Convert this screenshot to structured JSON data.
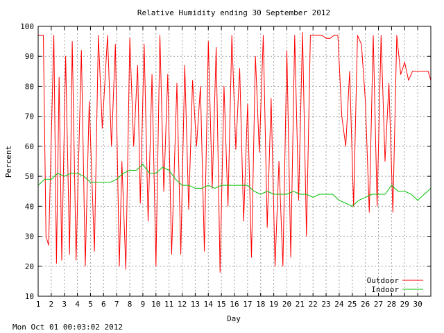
{
  "chart_data": {
    "type": "line",
    "title": "Relative Humidity ending 30 September 2012",
    "xlabel": "Day",
    "ylabel": "Percent",
    "footer": "Mon Oct 01 00:03:02 2012",
    "xlim": [
      1,
      31
    ],
    "ylim": [
      10,
      100
    ],
    "x_ticks": [
      "1",
      "2",
      "3",
      "4",
      "5",
      "6",
      "7",
      "8",
      "9",
      "10",
      "11",
      "12",
      "13",
      "14",
      "15",
      "16",
      "17",
      "18",
      "19",
      "20",
      "21",
      "22",
      "23",
      "24",
      "25",
      "26",
      "27",
      "28",
      "29",
      "30"
    ],
    "y_ticks": [
      "10",
      "20",
      "30",
      "40",
      "50",
      "60",
      "70",
      "80",
      "90",
      "100"
    ],
    "grid": true,
    "legend_position": "bottom-right",
    "series": [
      {
        "name": "Outdoor",
        "color": "#ff0000",
        "x": [
          1.0,
          1.4,
          1.6,
          1.8,
          2.2,
          2.4,
          2.6,
          2.8,
          3.1,
          3.4,
          3.6,
          3.9,
          4.3,
          4.6,
          4.9,
          5.3,
          5.6,
          5.9,
          6.3,
          6.6,
          6.9,
          7.2,
          7.4,
          7.7,
          8.0,
          8.3,
          8.6,
          8.8,
          9.1,
          9.4,
          9.7,
          10.0,
          10.3,
          10.6,
          10.9,
          11.2,
          11.6,
          11.9,
          12.2,
          12.5,
          12.8,
          13.1,
          13.4,
          13.7,
          14.0,
          14.3,
          14.6,
          14.9,
          15.2,
          15.5,
          15.8,
          16.1,
          16.4,
          16.7,
          17.0,
          17.3,
          17.6,
          17.9,
          18.2,
          18.5,
          18.8,
          19.1,
          19.4,
          19.7,
          20.0,
          20.3,
          20.6,
          20.9,
          21.2,
          21.5,
          21.8,
          22.1,
          22.4,
          22.7,
          23.0,
          23.3,
          23.6,
          23.9,
          24.2,
          24.5,
          24.8,
          25.1,
          25.4,
          25.7,
          26.0,
          26.3,
          26.6,
          26.9,
          27.2,
          27.5,
          27.8,
          28.1,
          28.4,
          28.7,
          29.0,
          29.3,
          29.6,
          29.9,
          30.2,
          30.5,
          30.8,
          31.0
        ],
        "values": [
          97,
          97,
          30,
          27,
          97,
          21,
          83,
          22,
          90,
          24,
          95,
          22,
          92,
          20,
          75,
          25,
          97,
          66,
          97,
          60,
          94,
          20,
          55,
          19,
          96,
          60,
          87,
          41,
          94,
          35,
          84,
          20,
          97,
          45,
          84,
          24,
          81,
          24,
          87,
          39,
          82,
          60,
          80,
          25,
          95,
          46,
          93,
          18,
          80,
          40,
          97,
          59,
          86,
          35,
          74,
          23,
          90,
          58,
          97,
          33,
          76,
          20,
          55,
          20,
          92,
          23,
          97,
          42,
          98,
          30,
          97,
          97,
          97,
          97,
          96,
          96,
          97,
          97,
          70,
          60,
          85,
          40,
          97,
          94,
          75,
          38,
          97,
          40,
          97,
          55,
          81,
          38,
          97,
          84,
          88,
          82,
          85,
          85,
          85,
          85,
          85,
          82
        ]
      },
      {
        "name": "Indoor",
        "color": "#00c000",
        "x": [
          1.0,
          1.5,
          2.0,
          2.5,
          3.0,
          3.5,
          4.0,
          4.5,
          5.0,
          5.5,
          6.0,
          6.5,
          7.0,
          7.5,
          8.0,
          8.5,
          9.0,
          9.5,
          10.0,
          10.5,
          11.0,
          11.5,
          12.0,
          12.5,
          13.0,
          13.5,
          14.0,
          14.5,
          15.0,
          15.5,
          16.0,
          16.5,
          17.0,
          17.5,
          18.0,
          18.5,
          19.0,
          19.5,
          20.0,
          20.5,
          21.0,
          21.5,
          22.0,
          22.5,
          23.0,
          23.5,
          24.0,
          24.5,
          25.0,
          25.5,
          26.0,
          26.5,
          27.0,
          27.5,
          28.0,
          28.5,
          29.0,
          29.5,
          30.0,
          30.5,
          31.0
        ],
        "values": [
          47,
          49,
          49,
          51,
          50,
          51,
          51,
          50,
          48,
          48,
          48,
          48,
          49,
          51,
          52,
          52,
          54,
          51,
          51,
          53,
          52,
          49,
          47,
          47,
          46,
          46,
          47,
          46,
          47,
          47,
          47,
          47,
          47,
          45,
          44,
          45,
          44,
          44,
          44,
          45,
          44,
          44,
          43,
          44,
          44,
          44,
          42,
          41,
          40,
          42,
          43,
          44,
          44,
          44,
          47,
          45,
          45,
          44,
          42,
          44,
          46
        ]
      }
    ]
  }
}
